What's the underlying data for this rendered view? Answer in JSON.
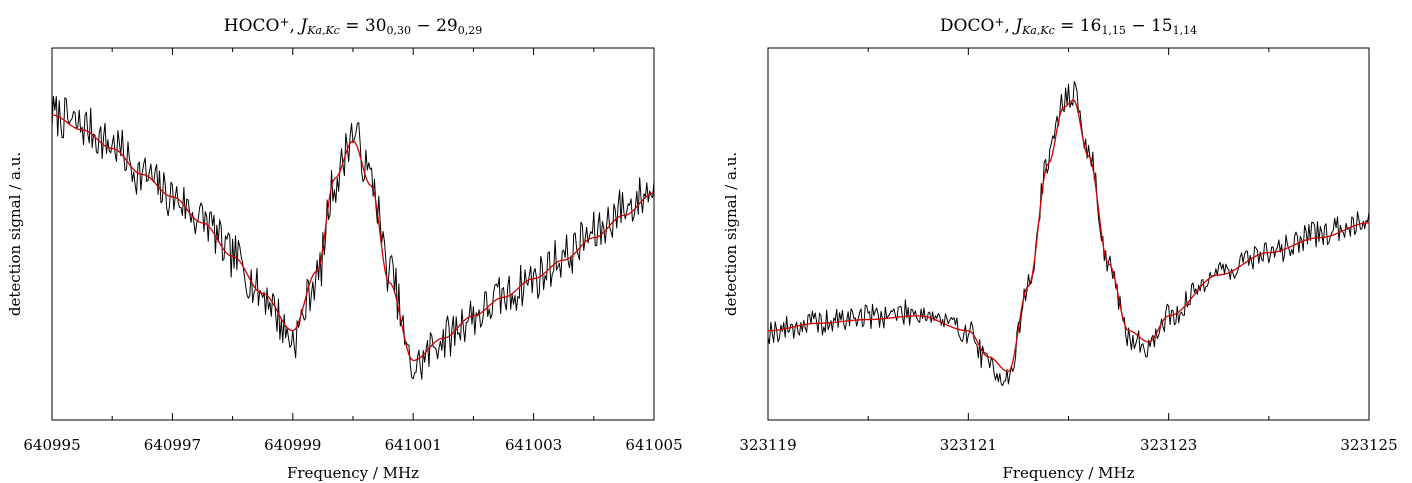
{
  "chart_data": [
    {
      "type": "line",
      "title": {
        "species": "HOCO",
        "charge": "+",
        "quantum_symbol": "J",
        "quantum_subscript": "Ka,Kc",
        "upper_level": "30",
        "upper_sub": "0,30",
        "lower_level": "29",
        "lower_sub": "0,29"
      },
      "xlabel": "Frequency / MHz",
      "ylabel": "detection signal / a.u.",
      "xlim": [
        640995,
        641005
      ],
      "ylim": [
        0,
        1
      ],
      "xticks_major": [
        640995,
        640997,
        640999,
        641001,
        641003,
        641005
      ],
      "xtick_labels": [
        "640995",
        "640997",
        "640999",
        "641001",
        "641003",
        "641005"
      ],
      "xticks_minor_step": 1,
      "grid": false,
      "series": [
        {
          "role": "measured",
          "color": "#000000",
          "x": [
            640995.0,
            640995.5,
            640996.0,
            640996.5,
            640997.0,
            640997.5,
            640998.0,
            640998.5,
            640999.0,
            640999.4,
            640999.7,
            641000.0,
            641000.3,
            641000.6,
            641001.0,
            641001.5,
            641002.0,
            641002.5,
            641003.0,
            641003.5,
            641004.0,
            641004.5,
            641005.0
          ],
          "values": [
            0.82,
            0.79,
            0.74,
            0.66,
            0.6,
            0.54,
            0.44,
            0.34,
            0.22,
            0.38,
            0.64,
            0.77,
            0.65,
            0.4,
            0.14,
            0.22,
            0.28,
            0.33,
            0.38,
            0.44,
            0.5,
            0.57,
            0.62
          ],
          "noise": 0.06
        },
        {
          "role": "fit",
          "color": "#d00000",
          "x": [
            640995.0,
            640995.5,
            640996.0,
            640996.5,
            640997.0,
            640997.5,
            640998.0,
            640998.5,
            640999.0,
            640999.4,
            640999.7,
            641000.0,
            641000.3,
            641000.6,
            641001.0,
            641001.5,
            641002.0,
            641002.5,
            641003.0,
            641003.5,
            641004.0,
            641004.5,
            641005.0
          ],
          "values": [
            0.82,
            0.78,
            0.73,
            0.66,
            0.6,
            0.53,
            0.44,
            0.34,
            0.24,
            0.4,
            0.65,
            0.75,
            0.63,
            0.37,
            0.16,
            0.22,
            0.28,
            0.33,
            0.38,
            0.43,
            0.49,
            0.55,
            0.61
          ]
        }
      ]
    },
    {
      "type": "line",
      "title": {
        "species": "DOCO",
        "charge": "+",
        "quantum_symbol": "J",
        "quantum_subscript": "Ka,Kc",
        "upper_level": "16",
        "upper_sub": "1,15",
        "lower_level": "15",
        "lower_sub": "1,14"
      },
      "xlabel": "Frequency / MHz",
      "ylabel": "detection signal / a.u.",
      "xlim": [
        323119,
        323125
      ],
      "ylim": [
        0,
        1
      ],
      "xticks_major": [
        323119,
        323121,
        323123,
        323125
      ],
      "xtick_labels": [
        "323119",
        "323121",
        "323123",
        "323125"
      ],
      "xticks_minor_step": 1,
      "grid": false,
      "series": [
        {
          "role": "measured",
          "color": "#000000",
          "x": [
            323119.0,
            323119.5,
            323120.0,
            323120.5,
            323121.0,
            323121.2,
            323121.4,
            323121.6,
            323121.8,
            323121.95,
            323122.05,
            323122.2,
            323122.4,
            323122.6,
            323122.8,
            323123.0,
            323123.5,
            323124.0,
            323124.5,
            323125.0
          ],
          "values": [
            0.24,
            0.26,
            0.28,
            0.29,
            0.24,
            0.15,
            0.11,
            0.36,
            0.7,
            0.86,
            0.88,
            0.72,
            0.42,
            0.22,
            0.2,
            0.28,
            0.4,
            0.45,
            0.5,
            0.54
          ],
          "noise": 0.035
        },
        {
          "role": "fit",
          "color": "#d00000",
          "x": [
            323119.0,
            323119.5,
            323120.0,
            323120.5,
            323121.0,
            323121.2,
            323121.4,
            323121.6,
            323121.8,
            323121.95,
            323122.05,
            323122.2,
            323122.4,
            323122.6,
            323122.8,
            323123.0,
            323123.5,
            323124.0,
            323124.5,
            323125.0
          ],
          "values": [
            0.24,
            0.26,
            0.27,
            0.28,
            0.24,
            0.17,
            0.13,
            0.36,
            0.69,
            0.84,
            0.86,
            0.71,
            0.42,
            0.24,
            0.21,
            0.28,
            0.39,
            0.45,
            0.49,
            0.53
          ]
        }
      ]
    }
  ]
}
